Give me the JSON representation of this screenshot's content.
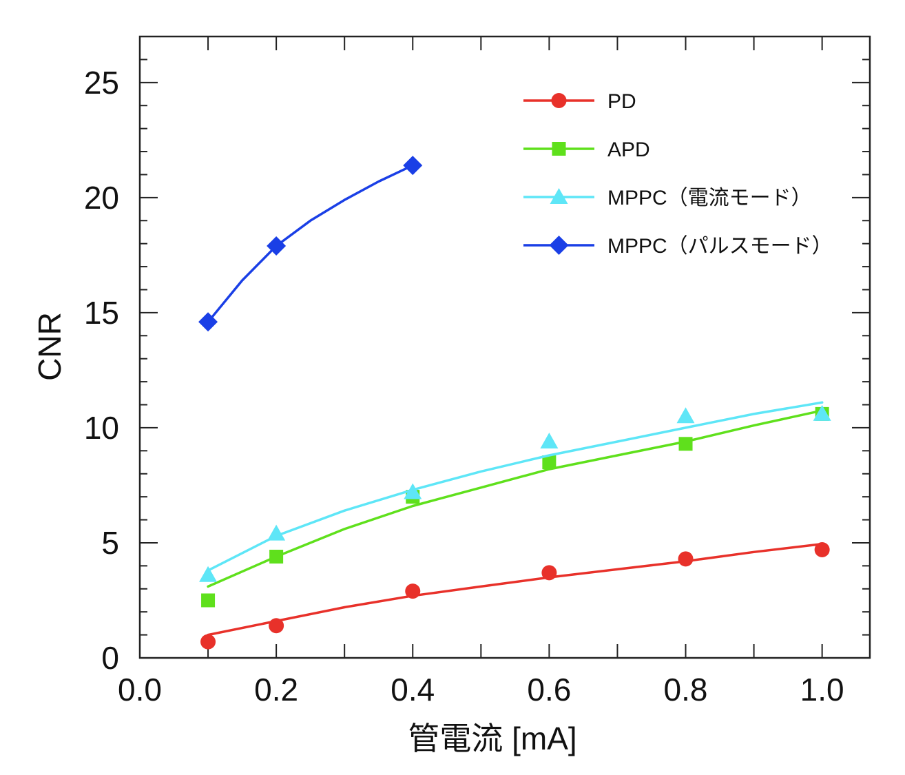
{
  "chart_data": {
    "type": "scatter",
    "xlabel": "管電流 [mA]",
    "ylabel": "CNR",
    "xlim": [
      0.0,
      1.07
    ],
    "ylim": [
      0,
      27
    ],
    "x_ticks": [
      0.0,
      0.2,
      0.4,
      0.6,
      0.8,
      1.0
    ],
    "x_tick_labels": [
      "0.0",
      "0.2",
      "0.4",
      "0.6",
      "0.8",
      "1.0"
    ],
    "y_ticks": [
      0,
      5,
      10,
      15,
      20,
      25
    ],
    "y_tick_labels": [
      "0",
      "5",
      "10",
      "15",
      "20",
      "25"
    ],
    "grid": false,
    "legend_position": "top-right",
    "series": [
      {
        "name": "PD",
        "color": "#e8312a",
        "marker": "circle",
        "x": [
          0.1,
          0.2,
          0.4,
          0.6,
          0.8,
          1.0
        ],
        "y": [
          0.7,
          1.4,
          2.9,
          3.7,
          4.3,
          4.7
        ],
        "fit": [
          [
            0.1,
            1.0
          ],
          [
            0.2,
            1.6
          ],
          [
            0.3,
            2.2
          ],
          [
            0.4,
            2.7
          ],
          [
            0.5,
            3.1
          ],
          [
            0.6,
            3.5
          ],
          [
            0.7,
            3.85
          ],
          [
            0.8,
            4.2
          ],
          [
            0.9,
            4.6
          ],
          [
            1.0,
            4.95
          ]
        ]
      },
      {
        "name": "APD",
        "color": "#5fe01c",
        "marker": "square",
        "x": [
          0.1,
          0.2,
          0.4,
          0.6,
          0.8,
          1.0
        ],
        "y": [
          2.5,
          4.4,
          7.0,
          8.5,
          9.3,
          10.6
        ],
        "fit": [
          [
            0.1,
            3.1
          ],
          [
            0.2,
            4.4
          ],
          [
            0.3,
            5.6
          ],
          [
            0.4,
            6.6
          ],
          [
            0.5,
            7.4
          ],
          [
            0.6,
            8.2
          ],
          [
            0.7,
            8.8
          ],
          [
            0.8,
            9.4
          ],
          [
            0.9,
            10.1
          ],
          [
            1.0,
            10.75
          ]
        ]
      },
      {
        "name": "MPPC（電流モード）",
        "color": "#5ee6f7",
        "marker": "triangle",
        "x": [
          0.1,
          0.2,
          0.4,
          0.6,
          0.8,
          1.0
        ],
        "y": [
          3.6,
          5.4,
          7.2,
          9.4,
          10.5,
          10.6
        ],
        "fit": [
          [
            0.1,
            3.8
          ],
          [
            0.2,
            5.3
          ],
          [
            0.3,
            6.4
          ],
          [
            0.4,
            7.3
          ],
          [
            0.5,
            8.1
          ],
          [
            0.6,
            8.8
          ],
          [
            0.7,
            9.4
          ],
          [
            0.8,
            10.0
          ],
          [
            0.9,
            10.6
          ],
          [
            1.0,
            11.1
          ]
        ]
      },
      {
        "name": "MPPC（パルスモード）",
        "color": "#1a3fe6",
        "marker": "diamond",
        "x": [
          0.1,
          0.2,
          0.4
        ],
        "y": [
          14.6,
          17.9,
          21.4
        ],
        "fit": [
          [
            0.1,
            14.6
          ],
          [
            0.15,
            16.4
          ],
          [
            0.2,
            17.9
          ],
          [
            0.25,
            19.0
          ],
          [
            0.3,
            19.9
          ],
          [
            0.35,
            20.7
          ],
          [
            0.4,
            21.4
          ]
        ]
      }
    ]
  }
}
